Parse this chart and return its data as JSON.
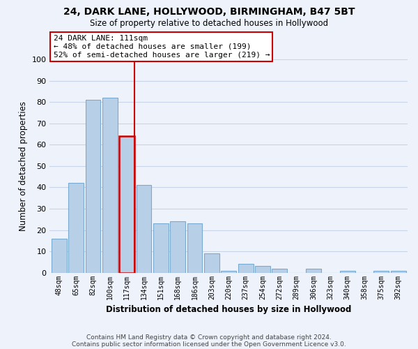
{
  "title": "24, DARK LANE, HOLLYWOOD, BIRMINGHAM, B47 5BT",
  "subtitle": "Size of property relative to detached houses in Hollywood",
  "xlabel": "Distribution of detached houses by size in Hollywood",
  "ylabel": "Number of detached properties",
  "footer_line1": "Contains HM Land Registry data © Crown copyright and database right 2024.",
  "footer_line2": "Contains public sector information licensed under the Open Government Licence v3.0.",
  "bar_labels": [
    "48sqm",
    "65sqm",
    "82sqm",
    "100sqm",
    "117sqm",
    "134sqm",
    "151sqm",
    "168sqm",
    "186sqm",
    "203sqm",
    "220sqm",
    "237sqm",
    "254sqm",
    "272sqm",
    "289sqm",
    "306sqm",
    "323sqm",
    "340sqm",
    "358sqm",
    "375sqm",
    "392sqm"
  ],
  "bar_values": [
    16,
    42,
    81,
    82,
    64,
    41,
    23,
    24,
    23,
    9,
    1,
    4,
    3,
    2,
    0,
    2,
    0,
    1,
    0,
    1,
    1
  ],
  "bar_color": "#b8cfe8",
  "bar_edge_color": "#7aaad0",
  "highlight_bar_index": 4,
  "highlight_bar_edge_color": "#cc0000",
  "highlight_line_color": "#cc0000",
  "ylim": [
    0,
    100
  ],
  "yticks": [
    0,
    10,
    20,
    30,
    40,
    50,
    60,
    70,
    80,
    90,
    100
  ],
  "annotation_title": "24 DARK LANE: 111sqm",
  "annotation_line1": "← 48% of detached houses are smaller (199)",
  "annotation_line2": "52% of semi-detached houses are larger (219) →",
  "grid_color": "#c8d4e8",
  "bg_color": "#eef2fa"
}
